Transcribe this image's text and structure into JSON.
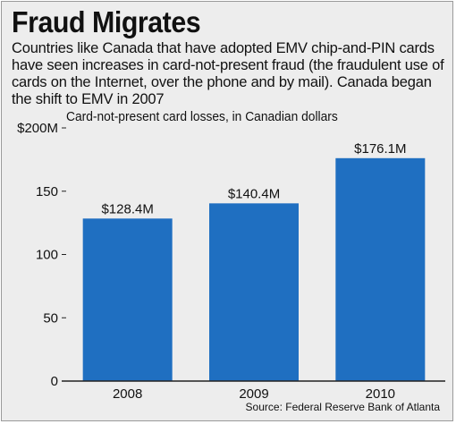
{
  "header": {
    "title": "Fraud Migrates",
    "description": "Countries like Canada that have adopted EMV chip-and-PIN cards have seen increases in card-not-present fraud (the fraudulent use of cards on the Internet, over the phone and by mail). Canada began the shift to EMV in 2007"
  },
  "chart_data": {
    "type": "bar",
    "title": "Card-not-present card losses, in Canadian dollars",
    "categories": [
      "2008",
      "2009",
      "2010"
    ],
    "values": [
      128.4,
      140.4,
      176.1
    ],
    "data_labels": [
      "$128.4M",
      "$140.4M",
      "$176.1M"
    ],
    "yticks": [
      0,
      50,
      100,
      150,
      200
    ],
    "ytick_labels": [
      "0",
      "50",
      "100",
      "150",
      "$200M"
    ],
    "ylim": [
      0,
      200
    ],
    "xlabel": "",
    "ylabel": "",
    "grid": false,
    "bar_color": "#1f6fc1"
  },
  "footer": {
    "source": "Source: Federal Reserve Bank of Atlanta"
  }
}
